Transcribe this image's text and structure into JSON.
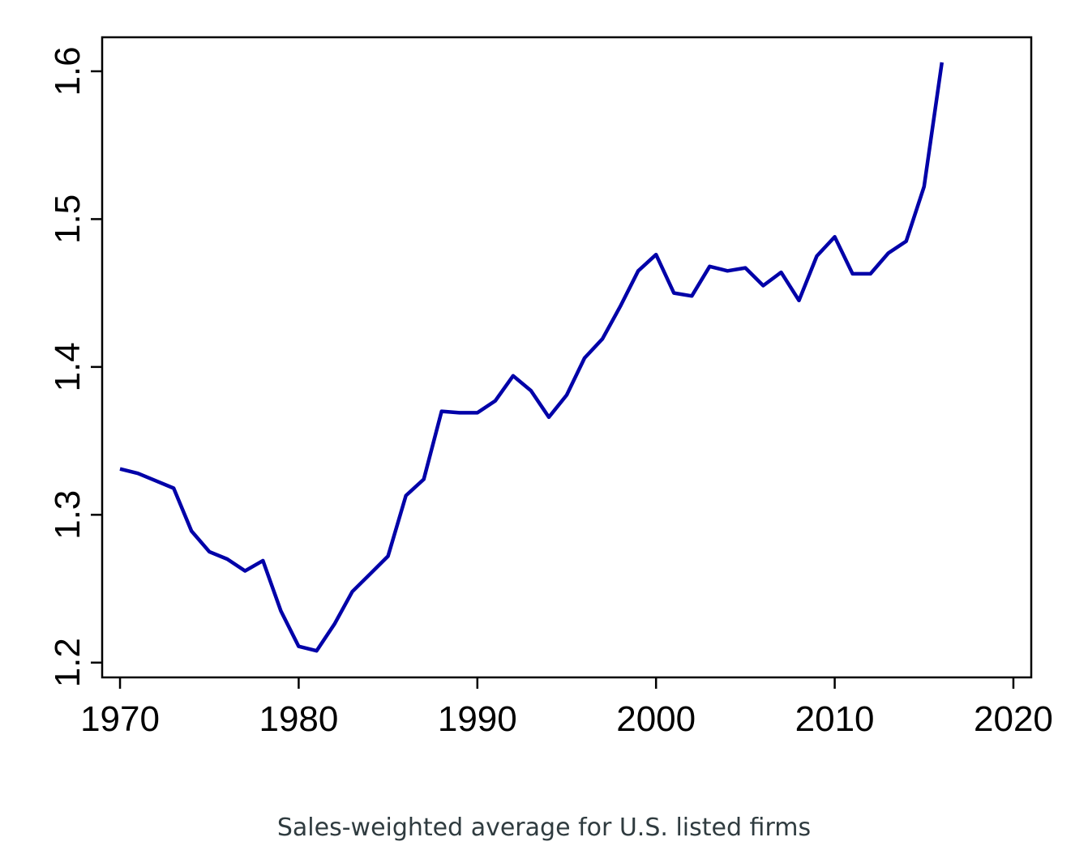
{
  "caption": "Sales-weighted average for U.S. listed firms",
  "colors": {
    "line": "#0000a8",
    "axis": "#000000",
    "background": "#ffffff"
  },
  "chart_data": {
    "type": "line",
    "title": "",
    "xlabel": "",
    "ylabel": "",
    "xlim": [
      1969,
      2021
    ],
    "ylim": [
      1.19,
      1.623
    ],
    "xticks": [
      1970,
      1980,
      1990,
      2000,
      2010,
      2020
    ],
    "yticks": [
      1.2,
      1.3,
      1.4,
      1.5,
      1.6
    ],
    "xtick_labels": [
      "1970",
      "1980",
      "1990",
      "2000",
      "2010",
      "2020"
    ],
    "ytick_labels": [
      "1.2",
      "1.3",
      "1.4",
      "1.5",
      "1.6"
    ],
    "grid": false,
    "legend": "none",
    "series": [
      {
        "x": [
          1970,
          1971,
          1972,
          1973,
          1974,
          1975,
          1976,
          1977,
          1978,
          1979,
          1980,
          1981,
          1982,
          1983,
          1984,
          1985,
          1986,
          1987,
          1988,
          1989,
          1990,
          1991,
          1992,
          1993,
          1994,
          1995,
          1996,
          1997,
          1998,
          1999,
          2000,
          2001,
          2002,
          2003,
          2004,
          2005,
          2006,
          2007,
          2008,
          2009,
          2010,
          2011,
          2012,
          2013,
          2014,
          2015,
          2016
        ],
        "values": [
          1.331,
          1.328,
          1.323,
          1.318,
          1.289,
          1.275,
          1.27,
          1.262,
          1.269,
          1.235,
          1.211,
          1.208,
          1.226,
          1.248,
          1.26,
          1.272,
          1.313,
          1.324,
          1.37,
          1.369,
          1.369,
          1.377,
          1.394,
          1.384,
          1.366,
          1.381,
          1.406,
          1.419,
          1.441,
          1.465,
          1.476,
          1.45,
          1.448,
          1.468,
          1.465,
          1.467,
          1.455,
          1.464,
          1.445,
          1.475,
          1.488,
          1.463,
          1.463,
          1.477,
          1.485,
          1.522,
          1.606
        ]
      }
    ]
  }
}
